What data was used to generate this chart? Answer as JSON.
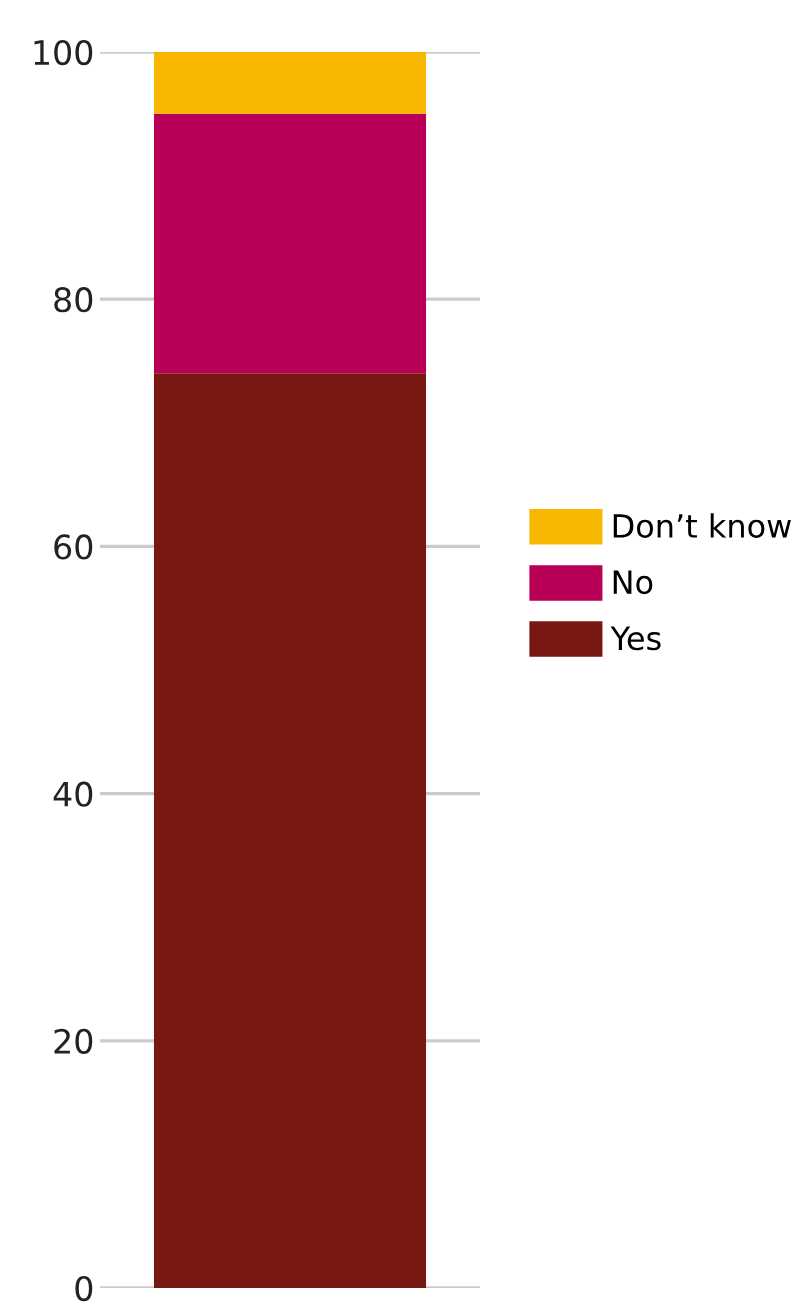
{
  "chart_data": {
    "type": "bar",
    "stacked": true,
    "categories": [
      null
    ],
    "series": [
      {
        "name": "Yes",
        "color": "#771813",
        "values": [
          74
        ]
      },
      {
        "name": "No",
        "color": "#b80056",
        "values": [
          21
        ]
      },
      {
        "name": "Don’t know",
        "color": "#f9b800",
        "values": [
          5
        ]
      }
    ],
    "ylim": [
      0,
      100
    ],
    "yticks": [
      0,
      20,
      40,
      60,
      80,
      100
    ],
    "grid": "y",
    "legend": "right",
    "tick_labels": "y"
  }
}
